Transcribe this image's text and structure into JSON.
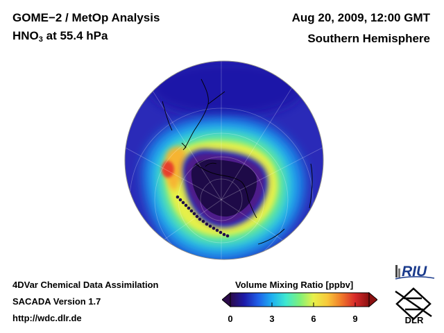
{
  "header": {
    "title_line1": "GOME−2 / MetOp Analysis",
    "species_main": "HNO",
    "species_sub": "3",
    "species_rest": " at 55.4 hPa",
    "date": "Aug 20, 2009, 12:00 GMT",
    "hemisphere": "Southern Hemisphere"
  },
  "footer": {
    "line1": "4DVar Chemical Data Assimilation",
    "line2": "SACADA Version 1.7",
    "line3": "http://wdc.dlr.de"
  },
  "colorbar": {
    "title": "Volume Mixing Ratio [ppbv]",
    "min": 0,
    "max": 10,
    "ticks": [
      "0",
      "3",
      "6",
      "9"
    ],
    "tick_values": [
      0,
      3,
      6,
      9
    ],
    "colors": [
      "#2b0a4a",
      "#1d1aa8",
      "#1f5fe8",
      "#1eb0f0",
      "#3ee8d0",
      "#7ef07a",
      "#e8f04a",
      "#f8c83a",
      "#f07a2a",
      "#d82a2a",
      "#8a1010"
    ]
  },
  "logos": {
    "riu": "RIU",
    "dlr": "DLR"
  },
  "colors": {
    "ocean_background": "#2a2ab8",
    "vortex_core": "#1e0a48",
    "vortex_ring": "#4d1a8a",
    "collar": "#1eb8f0",
    "maximum": "#d82a2a"
  }
}
